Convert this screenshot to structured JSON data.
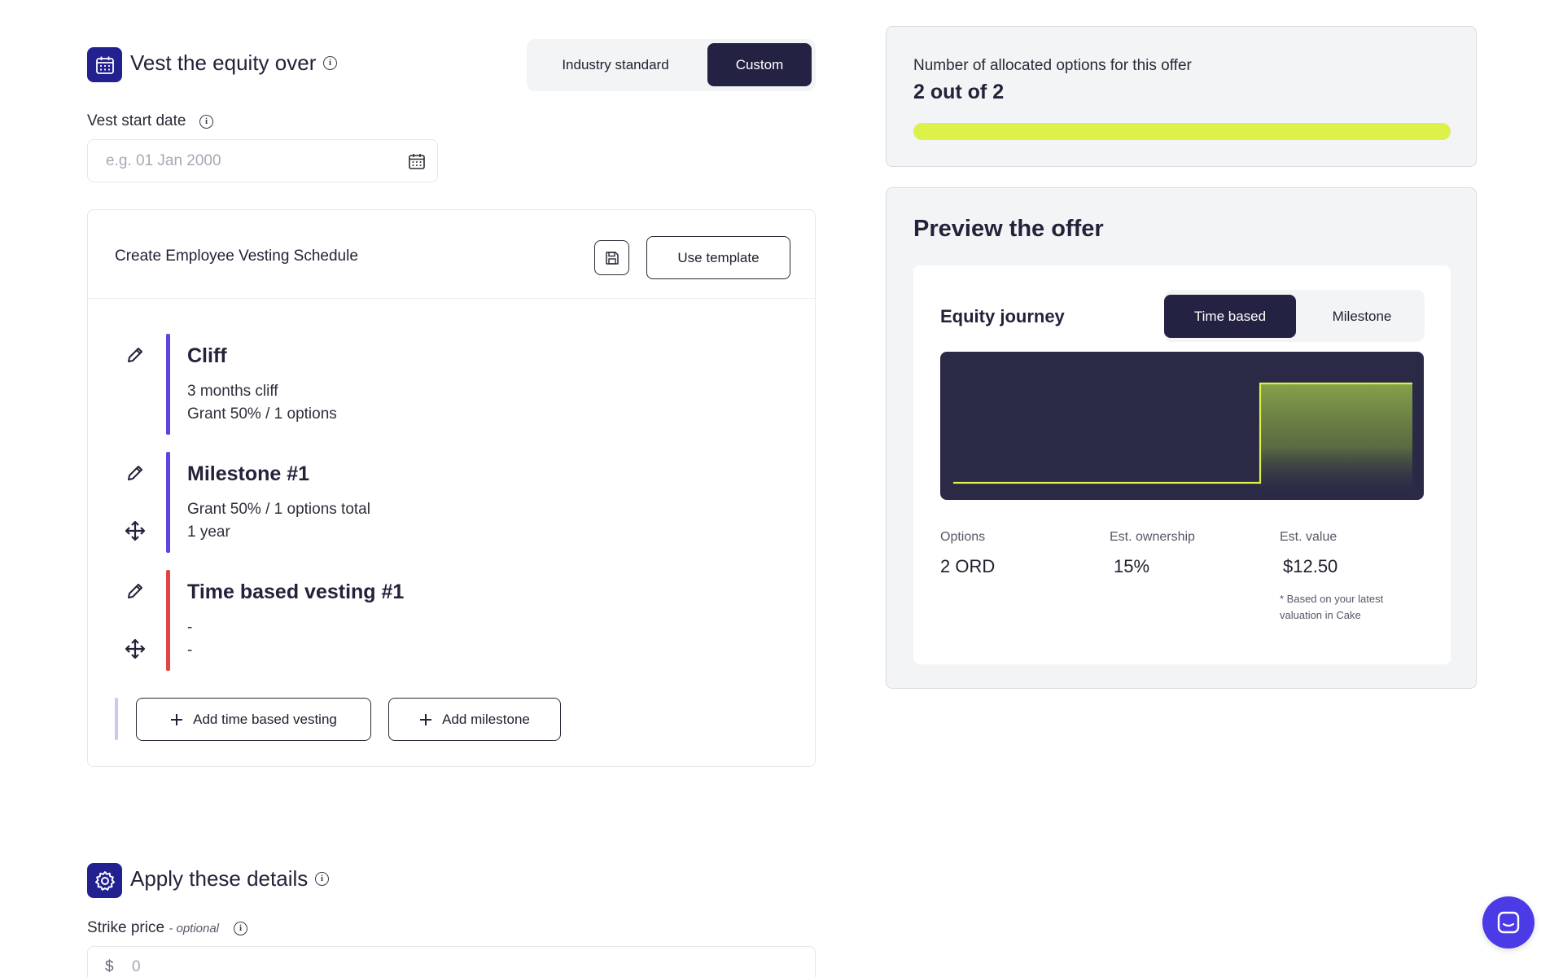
{
  "vest_section": {
    "title": "Vest the equity over",
    "icon": "calendar-icon",
    "toggle": {
      "options": [
        "Industry standard",
        "Custom"
      ],
      "selected": "Custom"
    }
  },
  "vest_start": {
    "label": "Vest start date",
    "placeholder": "e.g. 01 Jan 2000"
  },
  "schedule": {
    "title": "Create Employee Vesting Schedule",
    "use_template_label": "Use template",
    "steps": [
      {
        "title": "Cliff",
        "lines": [
          "3 months cliff",
          "Grant 50% / 1 options"
        ],
        "color": "#5b46e0"
      },
      {
        "title": "Milestone #1",
        "lines": [
          "Grant 50% / 1 options total",
          "1 year"
        ],
        "color": "#5b46e0"
      },
      {
        "title": "Time based vesting #1",
        "lines": [
          "-",
          "-"
        ],
        "color": "#e04545"
      }
    ],
    "add_time_label": "Add time based vesting",
    "add_milestone_label": "Add milestone"
  },
  "details_section": {
    "title": "Apply these details",
    "icon": "gear-icon",
    "strike_label": "Strike price",
    "strike_optional": "- optional",
    "currency": "$",
    "strike_placeholder": "0"
  },
  "allocation": {
    "label": "Number of allocated options for this offer",
    "value": "2 out of 2",
    "progress": 1.0,
    "bar_color": "#dcf24a"
  },
  "preview": {
    "title": "Preview the offer",
    "journey_title": "Equity journey",
    "toggle": {
      "options": [
        "Time based",
        "Milestone"
      ],
      "selected": "Time based"
    },
    "stats": [
      {
        "label": "Options",
        "value": "2 ORD"
      },
      {
        "label": "Est. ownership",
        "value": "15%"
      },
      {
        "label": "Est. value",
        "value": "$12.50"
      }
    ],
    "footnote_line1": "* Based on your latest",
    "footnote_line2": "valuation in Cake"
  },
  "colors": {
    "brand": "#23208f",
    "dark": "#242243",
    "accent": "#dcf24a"
  }
}
